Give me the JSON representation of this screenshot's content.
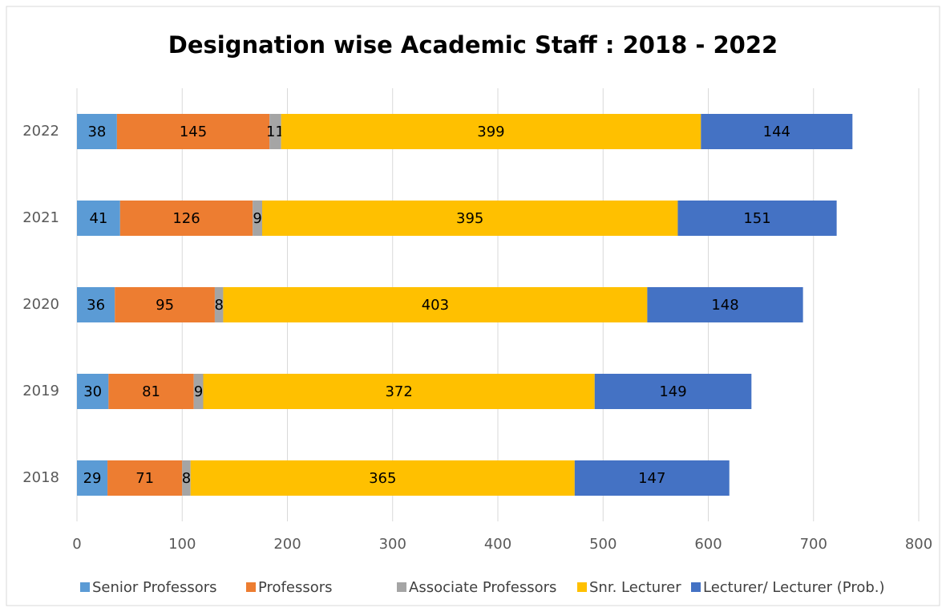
{
  "chart_data": {
    "type": "stacked_bar_horizontal",
    "title": "Designation wise Academic Staff : 2018 - 2022",
    "categories": [
      "2018",
      "2019",
      "2020",
      "2021",
      "2022"
    ],
    "series": [
      {
        "name": "Senior Professors",
        "color": "#5b9bd5",
        "values": [
          29,
          30,
          36,
          41,
          38
        ]
      },
      {
        "name": "Professors",
        "color": "#ed7d31",
        "values": [
          71,
          81,
          95,
          126,
          145
        ]
      },
      {
        "name": "Associate Professors",
        "color": "#a5a5a5",
        "values": [
          8,
          9,
          8,
          9,
          11
        ]
      },
      {
        "name": "Snr. Lecturer",
        "color": "#ffc000",
        "values": [
          365,
          372,
          403,
          395,
          399
        ]
      },
      {
        "name": "Lecturer/ Lecturer (Prob.)",
        "color": "#4472c4",
        "values": [
          147,
          149,
          148,
          151,
          144
        ]
      }
    ],
    "xlim": [
      0,
      800
    ],
    "xticks": [
      0,
      100,
      200,
      300,
      400,
      500,
      600,
      700,
      800
    ],
    "grid": true,
    "legend": "bottom"
  }
}
